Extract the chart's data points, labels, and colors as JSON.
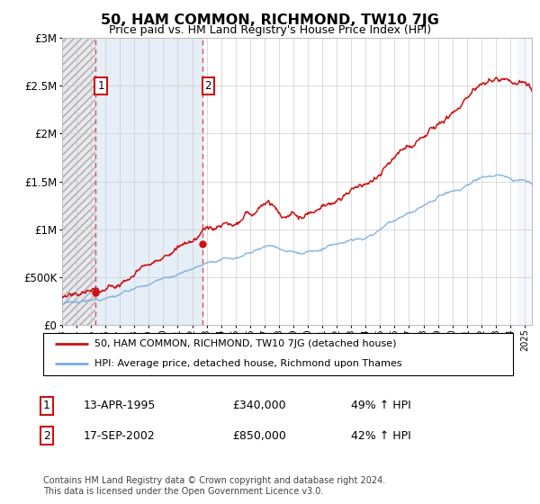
{
  "title": "50, HAM COMMON, RICHMOND, TW10 7JG",
  "subtitle": "Price paid vs. HM Land Registry's House Price Index (HPI)",
  "sale1_date": "13-APR-1995",
  "sale1_price": 340000,
  "sale1_label": "49% ↑ HPI",
  "sale2_date": "17-SEP-2002",
  "sale2_price": 850000,
  "sale2_label": "42% ↑ HPI",
  "legend_line1": "50, HAM COMMON, RICHMOND, TW10 7JG (detached house)",
  "legend_line2": "HPI: Average price, detached house, Richmond upon Thames",
  "footer": "Contains HM Land Registry data © Crown copyright and database right 2024.\nThis data is licensed under the Open Government Licence v3.0.",
  "sale1_x": 1995.3,
  "sale2_x": 2002.72,
  "hpi_color": "#7aaedc",
  "price_color": "#cc1111",
  "ylim": [
    0,
    3000000
  ],
  "xlim_left": 1993.0,
  "xlim_right": 2025.5
}
